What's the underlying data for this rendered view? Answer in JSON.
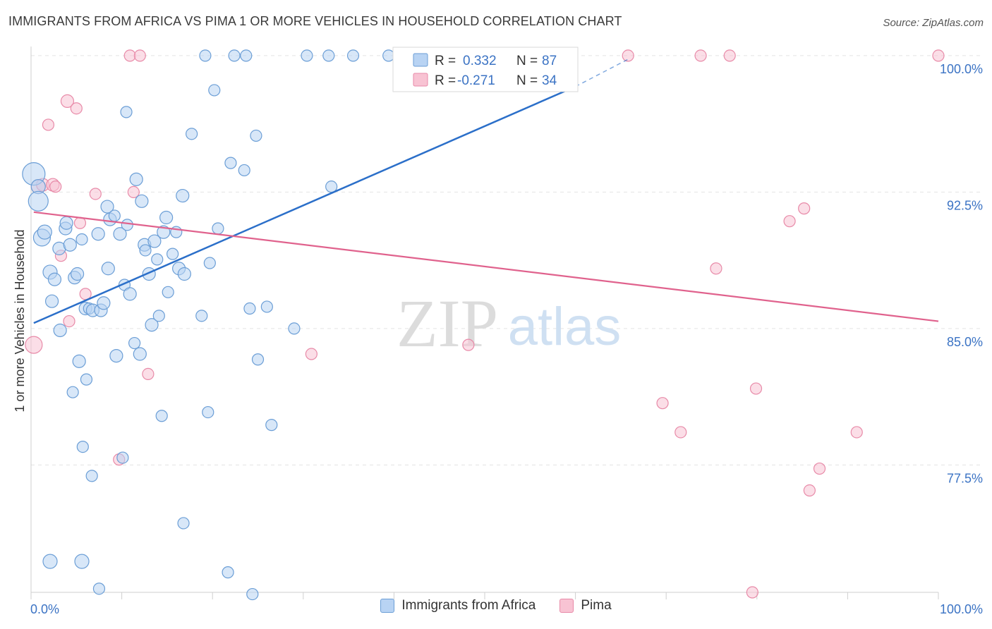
{
  "title": "IMMIGRANTS FROM AFRICA VS PIMA 1 OR MORE VEHICLES IN HOUSEHOLD CORRELATION CHART",
  "source": "Source: ZipAtlas.com",
  "watermark": {
    "zip": "ZIP",
    "atlas": "atlas"
  },
  "legend": [
    {
      "r_label": "R =",
      "r_value": "0.332",
      "n_label": "N =",
      "n_value": "87"
    },
    {
      "r_label": "R =",
      "r_value": "-0.271",
      "n_label": "N =",
      "n_value": "34"
    }
  ],
  "colors": {
    "blue_fill": "#b8d3f3",
    "blue_stroke": "#6b9ed6",
    "blue_line": "#2b6fc9",
    "pink_fill": "#f8c3d3",
    "pink_stroke": "#e88aa8",
    "pink_line": "#e0628d",
    "value_text": "#3b73c4",
    "grid": "#e3e3e3"
  },
  "chart_data": {
    "type": "scatter",
    "xlabel": "",
    "ylabel": "1 or more Vehicles in Household",
    "xlim": [
      0,
      100
    ],
    "ylim": [
      70.5,
      100.5
    ],
    "x_tick_labels": [
      "0.0%",
      "100.0%"
    ],
    "y_ticks": [
      {
        "value": 77.5,
        "label": "77.5%"
      },
      {
        "value": 85.0,
        "label": "85.0%"
      },
      {
        "value": 92.5,
        "label": "92.5%"
      },
      {
        "value": 100.0,
        "label": "100.0%"
      }
    ],
    "grid": true,
    "legend_position": "top-center",
    "series": [
      {
        "name": "Immigrants from Africa",
        "color": "blue",
        "trend": {
          "x0": 0.3,
          "y0": 85.3,
          "x1": 60.0,
          "y1": 98.3,
          "dash_to_x": 65.8,
          "dash_to_y": 99.8
        },
        "points": [
          [
            0.3,
            93.5,
            16
          ],
          [
            0.8,
            92.8,
            10
          ],
          [
            0.8,
            92.0,
            14
          ],
          [
            1.2,
            90.0,
            12
          ],
          [
            1.5,
            90.3,
            10
          ],
          [
            2.1,
            88.1,
            10
          ],
          [
            2.3,
            86.5,
            9
          ],
          [
            2.6,
            87.7,
            9
          ],
          [
            3.1,
            89.4,
            9
          ],
          [
            3.2,
            84.9,
            9
          ],
          [
            3.8,
            90.5,
            9
          ],
          [
            3.9,
            90.8,
            9
          ],
          [
            4.3,
            89.6,
            9
          ],
          [
            4.6,
            81.5,
            8
          ],
          [
            4.8,
            87.8,
            9
          ],
          [
            5.1,
            88.0,
            9
          ],
          [
            5.3,
            83.2,
            9
          ],
          [
            5.6,
            89.9,
            8
          ],
          [
            5.7,
            78.5,
            8
          ],
          [
            6.0,
            86.1,
            9
          ],
          [
            6.1,
            82.2,
            8
          ],
          [
            6.4,
            86.1,
            8
          ],
          [
            6.7,
            76.9,
            8
          ],
          [
            6.8,
            86.0,
            9
          ],
          [
            7.4,
            90.2,
            9
          ],
          [
            7.5,
            70.7,
            8
          ],
          [
            7.7,
            86.0,
            9
          ],
          [
            8.0,
            86.4,
            9
          ],
          [
            8.4,
            91.7,
            9
          ],
          [
            8.5,
            88.3,
            9
          ],
          [
            8.7,
            91.0,
            9
          ],
          [
            9.2,
            91.2,
            8
          ],
          [
            9.4,
            83.5,
            9
          ],
          [
            9.8,
            90.2,
            9
          ],
          [
            10.1,
            77.9,
            8
          ],
          [
            10.3,
            87.4,
            8
          ],
          [
            10.5,
            96.9,
            8
          ],
          [
            10.6,
            90.7,
            8
          ],
          [
            10.9,
            86.9,
            9
          ],
          [
            11.4,
            84.2,
            8
          ],
          [
            11.6,
            93.2,
            9
          ],
          [
            12.0,
            83.6,
            9
          ],
          [
            12.2,
            92.0,
            9
          ],
          [
            12.5,
            89.6,
            9
          ],
          [
            12.6,
            89.3,
            8
          ],
          [
            13.0,
            88.0,
            9
          ],
          [
            13.3,
            85.2,
            9
          ],
          [
            13.6,
            89.8,
            9
          ],
          [
            13.9,
            88.8,
            8
          ],
          [
            14.1,
            85.7,
            8
          ],
          [
            14.4,
            80.2,
            8
          ],
          [
            14.6,
            90.3,
            9
          ],
          [
            14.9,
            91.1,
            9
          ],
          [
            15.1,
            87.0,
            8
          ],
          [
            15.6,
            89.1,
            8
          ],
          [
            16.0,
            90.3,
            8
          ],
          [
            16.3,
            88.3,
            9
          ],
          [
            16.7,
            92.3,
            9
          ],
          [
            16.8,
            74.3,
            8
          ],
          [
            16.9,
            88.0,
            9
          ],
          [
            17.7,
            95.7,
            8
          ],
          [
            18.8,
            85.7,
            8
          ],
          [
            19.2,
            100.0,
            8
          ],
          [
            19.5,
            80.4,
            8
          ],
          [
            19.7,
            88.6,
            8
          ],
          [
            20.2,
            98.1,
            8
          ],
          [
            20.6,
            90.5,
            8
          ],
          [
            21.7,
            71.6,
            8
          ],
          [
            22.0,
            94.1,
            8
          ],
          [
            22.4,
            100.0,
            8
          ],
          [
            23.5,
            93.7,
            8
          ],
          [
            23.7,
            100.0,
            8
          ],
          [
            24.1,
            86.1,
            8
          ],
          [
            24.4,
            70.4,
            8
          ],
          [
            24.8,
            95.6,
            8
          ],
          [
            25.0,
            83.3,
            8
          ],
          [
            26.0,
            86.2,
            8
          ],
          [
            26.5,
            79.7,
            8
          ],
          [
            29.0,
            85.0,
            8
          ],
          [
            30.4,
            100.0,
            8
          ],
          [
            32.8,
            100.0,
            8
          ],
          [
            33.1,
            92.8,
            8
          ],
          [
            35.5,
            100.0,
            8
          ],
          [
            39.4,
            100.0,
            8
          ],
          [
            43.1,
            100.0,
            8
          ],
          [
            5.6,
            72.2,
            10
          ],
          [
            2.1,
            72.2,
            10
          ]
        ]
      },
      {
        "name": "Pima",
        "color": "pink",
        "trend": {
          "x0": 0.3,
          "y0": 91.4,
          "x1": 100.0,
          "y1": 85.4
        },
        "points": [
          [
            0.3,
            84.1,
            12
          ],
          [
            0.8,
            92.8,
            10
          ],
          [
            1.3,
            92.9,
            9
          ],
          [
            1.9,
            96.2,
            8
          ],
          [
            2.4,
            92.9,
            9
          ],
          [
            2.7,
            92.8,
            8
          ],
          [
            3.3,
            89.0,
            8
          ],
          [
            4.0,
            97.5,
            9
          ],
          [
            4.2,
            85.4,
            8
          ],
          [
            5.0,
            97.1,
            8
          ],
          [
            5.4,
            90.8,
            8
          ],
          [
            6.0,
            86.9,
            8
          ],
          [
            7.1,
            92.4,
            8
          ],
          [
            9.7,
            77.8,
            8
          ],
          [
            10.9,
            100.0,
            8
          ],
          [
            11.3,
            92.5,
            8
          ],
          [
            12.0,
            100.0,
            8
          ],
          [
            12.9,
            82.5,
            8
          ],
          [
            30.9,
            83.6,
            8
          ],
          [
            48.2,
            84.1,
            8
          ],
          [
            65.8,
            100.0,
            8
          ],
          [
            69.6,
            80.9,
            8
          ],
          [
            71.6,
            79.3,
            8
          ],
          [
            73.8,
            100.0,
            8
          ],
          [
            75.5,
            88.3,
            8
          ],
          [
            77.0,
            100.0,
            8
          ],
          [
            79.5,
            70.5,
            8
          ],
          [
            79.9,
            81.7,
            8
          ],
          [
            83.6,
            90.9,
            8
          ],
          [
            85.2,
            91.6,
            8
          ],
          [
            85.8,
            76.1,
            8
          ],
          [
            86.9,
            77.3,
            8
          ],
          [
            91.0,
            79.3,
            8
          ],
          [
            100.0,
            100.0,
            8
          ]
        ]
      }
    ]
  }
}
